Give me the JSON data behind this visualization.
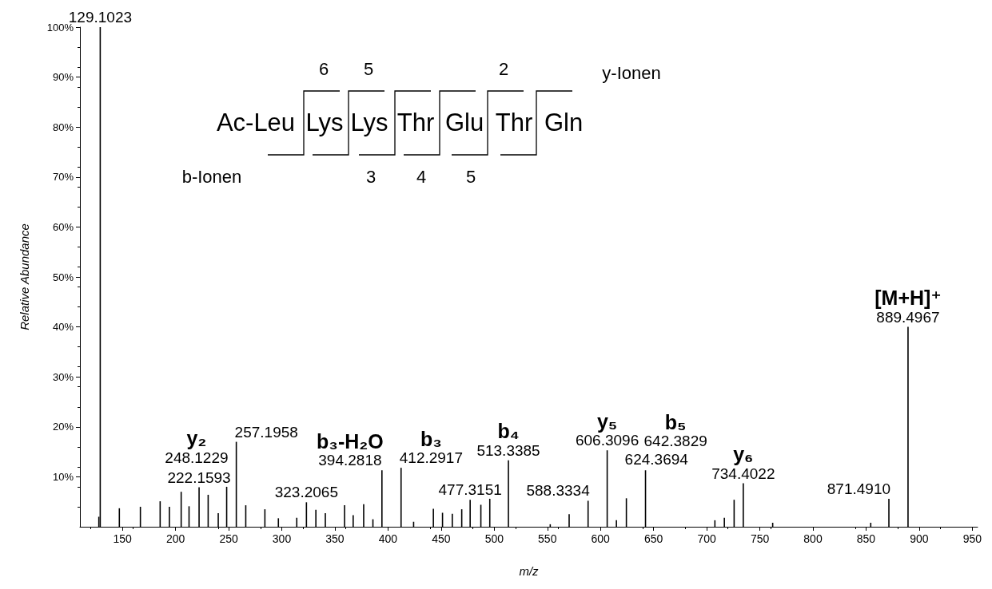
{
  "chart_data": {
    "type": "bar",
    "xlabel": "m/z",
    "ylabel": "Relative Abundance",
    "color": "#000000",
    "x": [
      127.8,
      129.1023,
      147.1,
      166.9,
      185.5,
      194.2,
      205.3,
      212.7,
      222.1593,
      230.7,
      240.2,
      248.1229,
      257.1958,
      266.1,
      284.1,
      296.8,
      314.1,
      323.2065,
      332.1,
      341.0,
      359.1,
      367.2,
      377.1,
      385.8,
      394.2818,
      412.2917,
      424.1,
      442.7,
      451.3,
      460.5,
      469.4,
      477.3151,
      487.4,
      495.8,
      513.3385,
      552.7,
      570.5,
      588.3334,
      606.3096,
      615.0,
      624.3694,
      642.3829,
      707.7,
      716.6,
      725.8,
      734.4022,
      762.1,
      854.4,
      871.491,
      889.4967
    ],
    "values": [
      2.0,
      100,
      3.7,
      4.0,
      5.1,
      4.0,
      7.0,
      4.1,
      7.9,
      6.4,
      2.7,
      8.0,
      17.0,
      4.3,
      3.5,
      1.7,
      1.8,
      4.9,
      3.4,
      2.7,
      4.3,
      2.3,
      4.5,
      1.5,
      11.3,
      11.8,
      1.0,
      3.6,
      2.8,
      2.6,
      3.5,
      5.4,
      4.4,
      5.6,
      13.3,
      0.5,
      2.5,
      5.2,
      15.3,
      1.3,
      5.7,
      11.3,
      1.3,
      1.8,
      5.4,
      8.7,
      0.8,
      0.8,
      5.6,
      40.0
    ],
    "xlim": [
      110,
      955
    ],
    "xticks": [
      150,
      200,
      250,
      300,
      350,
      400,
      450,
      500,
      550,
      600,
      650,
      700,
      750,
      800,
      850,
      900,
      950
    ],
    "ylim": [
      0,
      100
    ],
    "yticks": [
      {
        "value": 10,
        "label": "10%"
      },
      {
        "value": 20,
        "label": "20%"
      },
      {
        "value": 30,
        "label": "30%"
      },
      {
        "value": 40,
        "label": "40%"
      },
      {
        "value": 50,
        "label": "50%"
      },
      {
        "value": 60,
        "label": "60%"
      },
      {
        "value": 70,
        "label": "70%"
      },
      {
        "value": 80,
        "label": "80%"
      },
      {
        "value": 90,
        "label": "90%"
      },
      {
        "value": 100,
        "label": "100%"
      }
    ],
    "annotations": [
      {
        "text": "129.1023",
        "x": 129.1023,
        "y": 100
      },
      {
        "text": "222.1593",
        "x": 222.1593,
        "y": 7.9
      },
      {
        "text": "248.1229",
        "x": 248.1229,
        "y": 8.0
      },
      {
        "text": "y₂",
        "x": 248.1229,
        "y": 8.0
      },
      {
        "text": "257.1958",
        "x": 257.1958,
        "y": 17.0
      },
      {
        "text": "323.2065",
        "x": 323.2065,
        "y": 4.9
      },
      {
        "text": "394.2818",
        "x": 394.2818,
        "y": 11.3
      },
      {
        "text": "b₃-H₂O",
        "x": 394.2818,
        "y": 11.3
      },
      {
        "text": "412.2917",
        "x": 412.2917,
        "y": 11.8
      },
      {
        "text": "b₃",
        "x": 412.2917,
        "y": 11.8
      },
      {
        "text": "477.3151",
        "x": 477.3151,
        "y": 5.4
      },
      {
        "text": "513.3385",
        "x": 513.3385,
        "y": 13.3
      },
      {
        "text": "b₄",
        "x": 513.3385,
        "y": 13.3
      },
      {
        "text": "588.3334",
        "x": 588.3334,
        "y": 5.2
      },
      {
        "text": "606.3096",
        "x": 606.3096,
        "y": 15.3
      },
      {
        "text": "y₅",
        "x": 606.3096,
        "y": 15.3
      },
      {
        "text": "624.3694",
        "x": 624.3694,
        "y": 5.7
      },
      {
        "text": "642.3829",
        "x": 642.3829,
        "y": 11.3
      },
      {
        "text": "b₅",
        "x": 642.3829,
        "y": 11.3
      },
      {
        "text": "734.4022",
        "x": 734.4022,
        "y": 8.7
      },
      {
        "text": "y₆",
        "x": 734.4022,
        "y": 8.7
      },
      {
        "text": "871.4910",
        "x": 871.491,
        "y": 5.6
      },
      {
        "text": "889.4967",
        "x": 889.4967,
        "y": 40.0
      },
      {
        "text": "[M+H]⁺",
        "x": 889.4967,
        "y": 40.0
      },
      "Ac-Leu",
      "Lys",
      "Lys",
      "Thr",
      "Glu",
      "Thr",
      "Gln",
      "y-Ionen",
      "b-Ionen",
      "6",
      "5",
      "2",
      "3",
      "4",
      "5"
    ]
  }
}
